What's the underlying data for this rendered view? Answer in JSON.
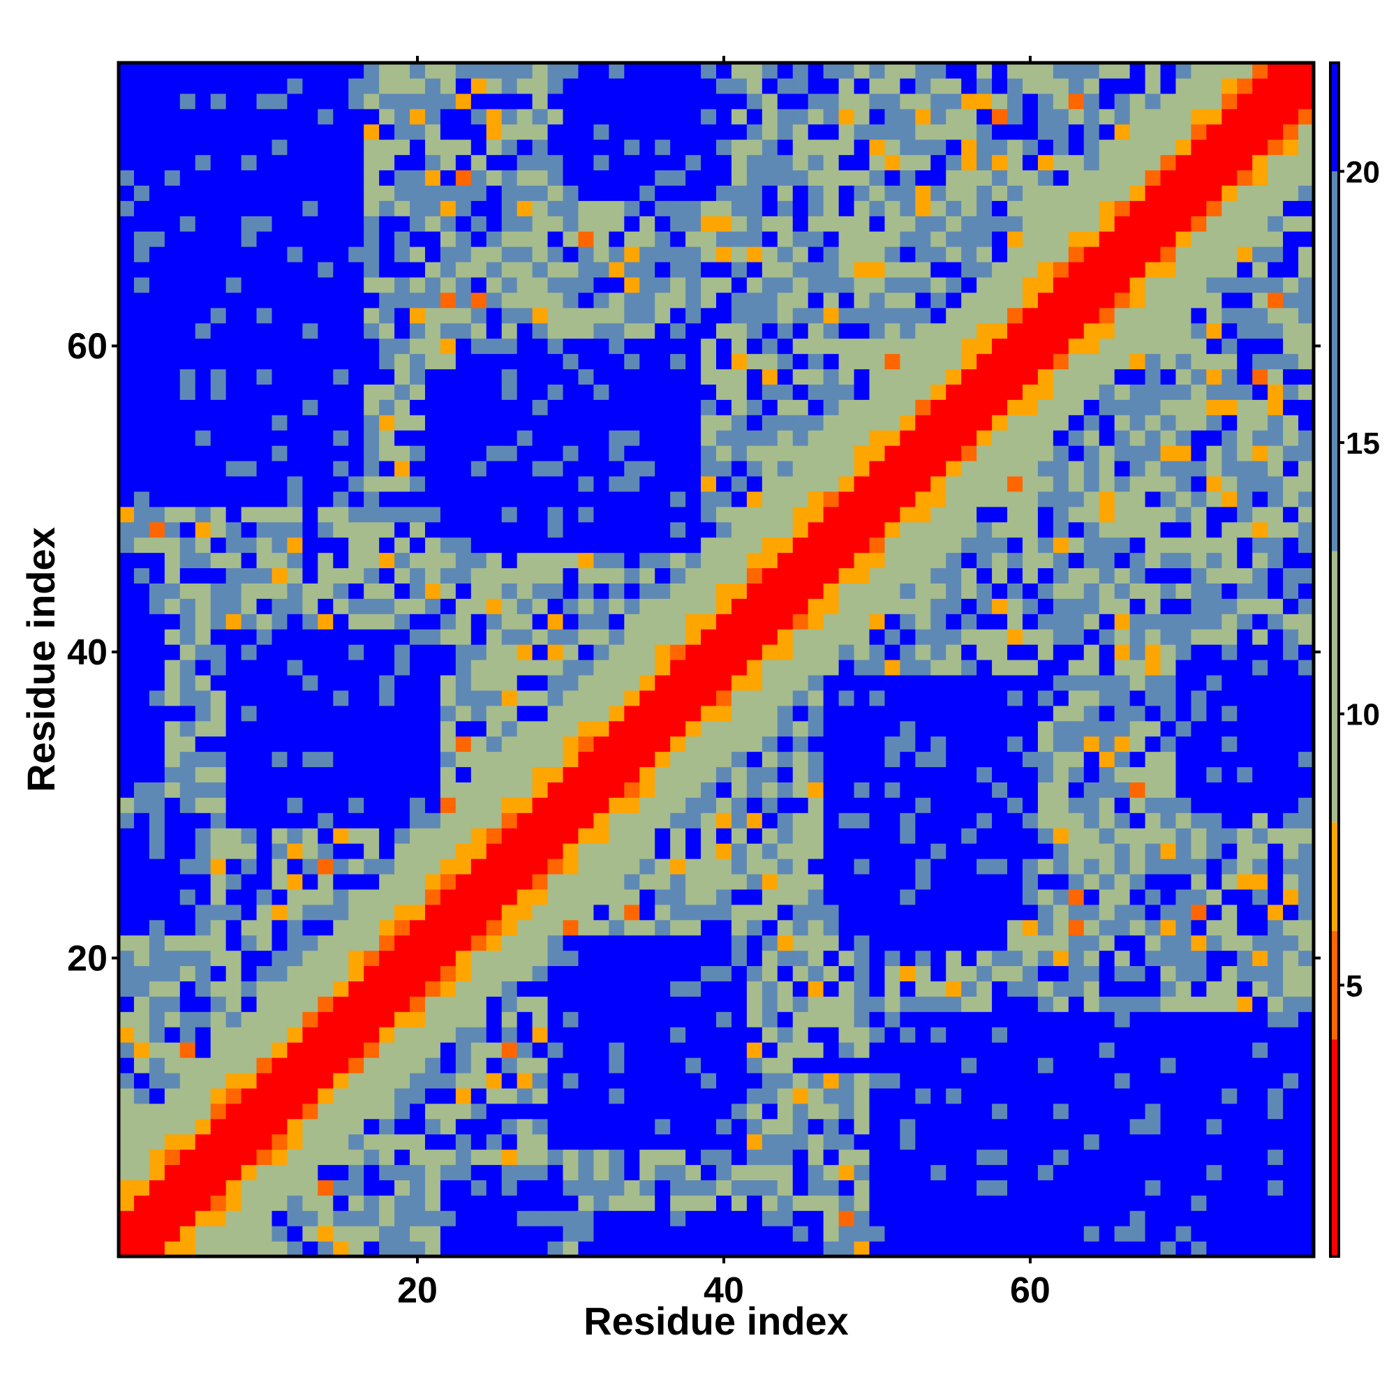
{
  "chart_data": {
    "type": "heatmap",
    "title": "",
    "xlabel": "Residue index",
    "ylabel": "Residue index",
    "n_residues": 78,
    "xlim": [
      0.5,
      78.5
    ],
    "ylim": [
      0.5,
      78.5
    ],
    "x_ticks": [
      20,
      40,
      60
    ],
    "y_ticks": [
      20,
      40,
      60
    ],
    "x_tick_labels": [
      "20",
      "40",
      "60"
    ],
    "y_tick_labels": [
      "20",
      "40",
      "60"
    ],
    "colorbar": {
      "ticks": [
        5,
        10,
        15,
        20
      ],
      "tick_labels": [
        "5",
        "10",
        "15",
        "20"
      ],
      "range": [
        0,
        22
      ],
      "colors": [
        {
          "max": 4,
          "color": "#ff0000"
        },
        {
          "max": 6,
          "color": "#ff6600"
        },
        {
          "max": 8,
          "color": "#ffa500"
        },
        {
          "max": 13,
          "color": "#a6bc8c"
        },
        {
          "max": 20,
          "color": "#5f89b5"
        },
        {
          "max": 22,
          "color": "#0000ff"
        }
      ]
    },
    "description_of_values": "Pairwise residue distance matrix (values shown via color scale; near-diagonal small values red/orange, large distances blue)",
    "blue_regions": [
      {
        "x": [
          1,
          15
        ],
        "y": [
          50,
          78
        ]
      },
      {
        "x": [
          31,
          39
        ],
        "y": [
          70,
          78
        ]
      },
      {
        "x": [
          23,
          38
        ],
        "y": [
          47,
          60
        ]
      },
      {
        "x": [
          8,
          20
        ],
        "y": [
          29,
          41
        ]
      },
      {
        "x": [
          30,
          41
        ],
        "y": [
          9,
          21
        ]
      },
      {
        "x": [
          50,
          78
        ],
        "y": [
          1,
          16
        ]
      },
      {
        "x": [
          48,
          58
        ],
        "y": [
          21,
          37
        ]
      },
      {
        "x": [
          72,
          78
        ],
        "y": [
          30,
          40
        ]
      },
      {
        "x": [
          1,
          3
        ],
        "y": [
          31,
          46
        ]
      },
      {
        "x": [
          1,
          5
        ],
        "y": [
          22,
          29
        ]
      },
      {
        "x": [
          56,
          64
        ],
        "y": [
          55,
          60
        ]
      }
    ]
  }
}
